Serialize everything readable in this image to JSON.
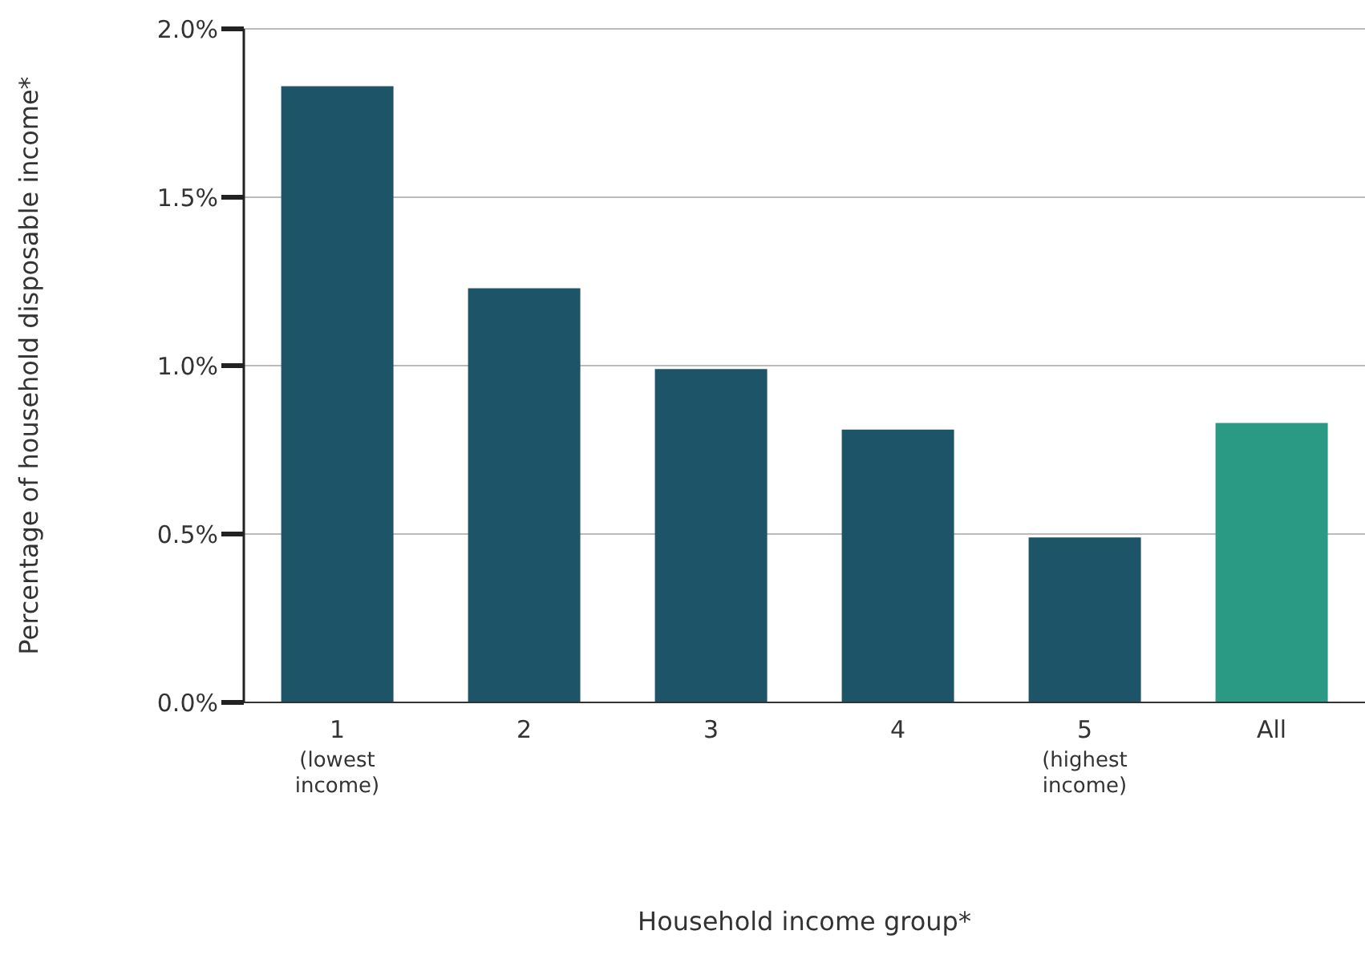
{
  "chart_data": {
    "type": "bar",
    "xlabel": "Household income group*",
    "ylabel": "Percentage of household disposable income*",
    "categories": [
      "1\n(lowest\nincome)",
      "2",
      "3",
      "4",
      "5\n(highest\nincome)",
      "All"
    ],
    "values": [
      1.83,
      1.23,
      0.99,
      0.81,
      0.49,
      0.83
    ],
    "colors": [
      "#1e5468",
      "#1e5468",
      "#1e5468",
      "#1e5468",
      "#1e5468",
      "#2a9a85"
    ],
    "ylim": [
      0,
      2
    ],
    "yticks": [
      {
        "value": 0,
        "label": "0.0%"
      },
      {
        "value": 0.5,
        "label": "0.5%"
      },
      {
        "value": 1,
        "label": "1.0%"
      },
      {
        "value": 1.5,
        "label": "1.5%"
      },
      {
        "value": 2,
        "label": "2.0%"
      }
    ],
    "grid": "y",
    "legend": false
  }
}
